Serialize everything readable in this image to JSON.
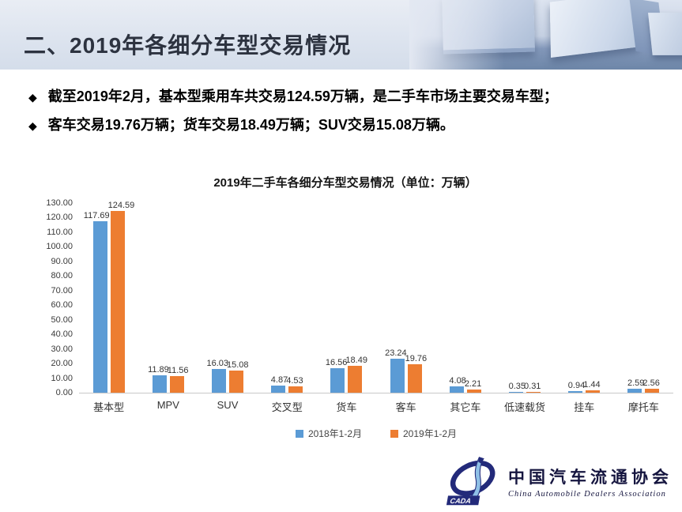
{
  "header": {
    "title": "二、2019年各细分车型交易情况"
  },
  "bullets": [
    {
      "marker": "◆",
      "text": "截至2019年2月，基本型乘用车共交易124.59万辆，是二手车市场主要交易车型；"
    },
    {
      "marker": "◆",
      "text": "客车交易19.76万辆；货车交易18.49万辆；SUV交易15.08万辆。"
    }
  ],
  "chart_data": {
    "type": "bar",
    "title": "2019年二手车各细分车型交易情况（单位：万辆）",
    "categories": [
      "基本型",
      "MPV",
      "SUV",
      "交叉型",
      "货车",
      "客车",
      "其它车",
      "低速载货",
      "挂车",
      "摩托车"
    ],
    "series": [
      {
        "name": "2018年1-2月",
        "color": "#5b9bd5",
        "values": [
          117.69,
          11.89,
          16.03,
          4.87,
          16.56,
          23.24,
          4.08,
          0.35,
          0.94,
          2.59
        ]
      },
      {
        "name": "2019年1-2月",
        "color": "#ed7d31",
        "values": [
          124.59,
          11.56,
          15.08,
          4.53,
          18.49,
          19.76,
          2.21,
          0.31,
          1.44,
          2.56
        ]
      }
    ],
    "ylim": [
      0,
      130
    ],
    "y_ticks": [
      "130.00",
      "120.00",
      "110.00",
      "100.00",
      "90.00",
      "80.00",
      "70.00",
      "60.00",
      "50.00",
      "40.00",
      "30.00",
      "20.00",
      "10.00",
      "0.00"
    ],
    "grid": false,
    "legend_position": "bottom",
    "value_labels": true
  },
  "logo": {
    "acronym": "CADA",
    "name_zh": "中国汽车流通协会",
    "name_en": "China Automobile Dealers Association",
    "brand_color": "#232a7a",
    "ribbon_color": "#8fc0e6"
  },
  "colors": {
    "header_text": "#2d3340",
    "series_2018": "#5b9bd5",
    "series_2019": "#ed7d31",
    "axis_line": "#c8c8c8"
  }
}
